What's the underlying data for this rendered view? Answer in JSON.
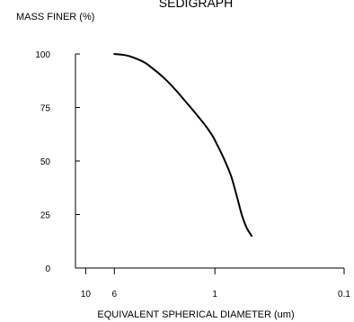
{
  "chart_data": {
    "type": "line",
    "title": "SEDIGRAPH",
    "ylabel": "MASS FINER (%)",
    "xlabel": "EQUIVALENT SPHERICAL DIAMETER (um)",
    "x_scale": "log",
    "x_reversed": true,
    "xlim": [
      12,
      0.1
    ],
    "ylim": [
      0,
      100
    ],
    "x_ticks": [
      {
        "value": 10,
        "label": "10"
      },
      {
        "value": 6,
        "label": "6"
      },
      {
        "value": 1,
        "label": "1"
      },
      {
        "value": 0.1,
        "label": "0.1"
      }
    ],
    "y_ticks": [
      {
        "value": 0,
        "label": "0"
      },
      {
        "value": 25,
        "label": "25"
      },
      {
        "value": 50,
        "label": "50"
      },
      {
        "value": 75,
        "label": "75"
      },
      {
        "value": 100,
        "label": "100"
      }
    ],
    "grid": false,
    "series": [
      {
        "x": [
          6,
          5,
          4.3,
          3.5,
          3,
          2.5,
          2,
          1.7,
          1.4,
          1.2,
          1.05,
          0.95,
          0.85,
          0.75,
          0.68,
          0.62,
          0.57,
          0.52
        ],
        "y": [
          100,
          99.5,
          98.4,
          96,
          93,
          89,
          83,
          78,
          72,
          67,
          62,
          57,
          51,
          43,
          34,
          25,
          19,
          15
        ],
        "color": "#000000"
      }
    ]
  }
}
